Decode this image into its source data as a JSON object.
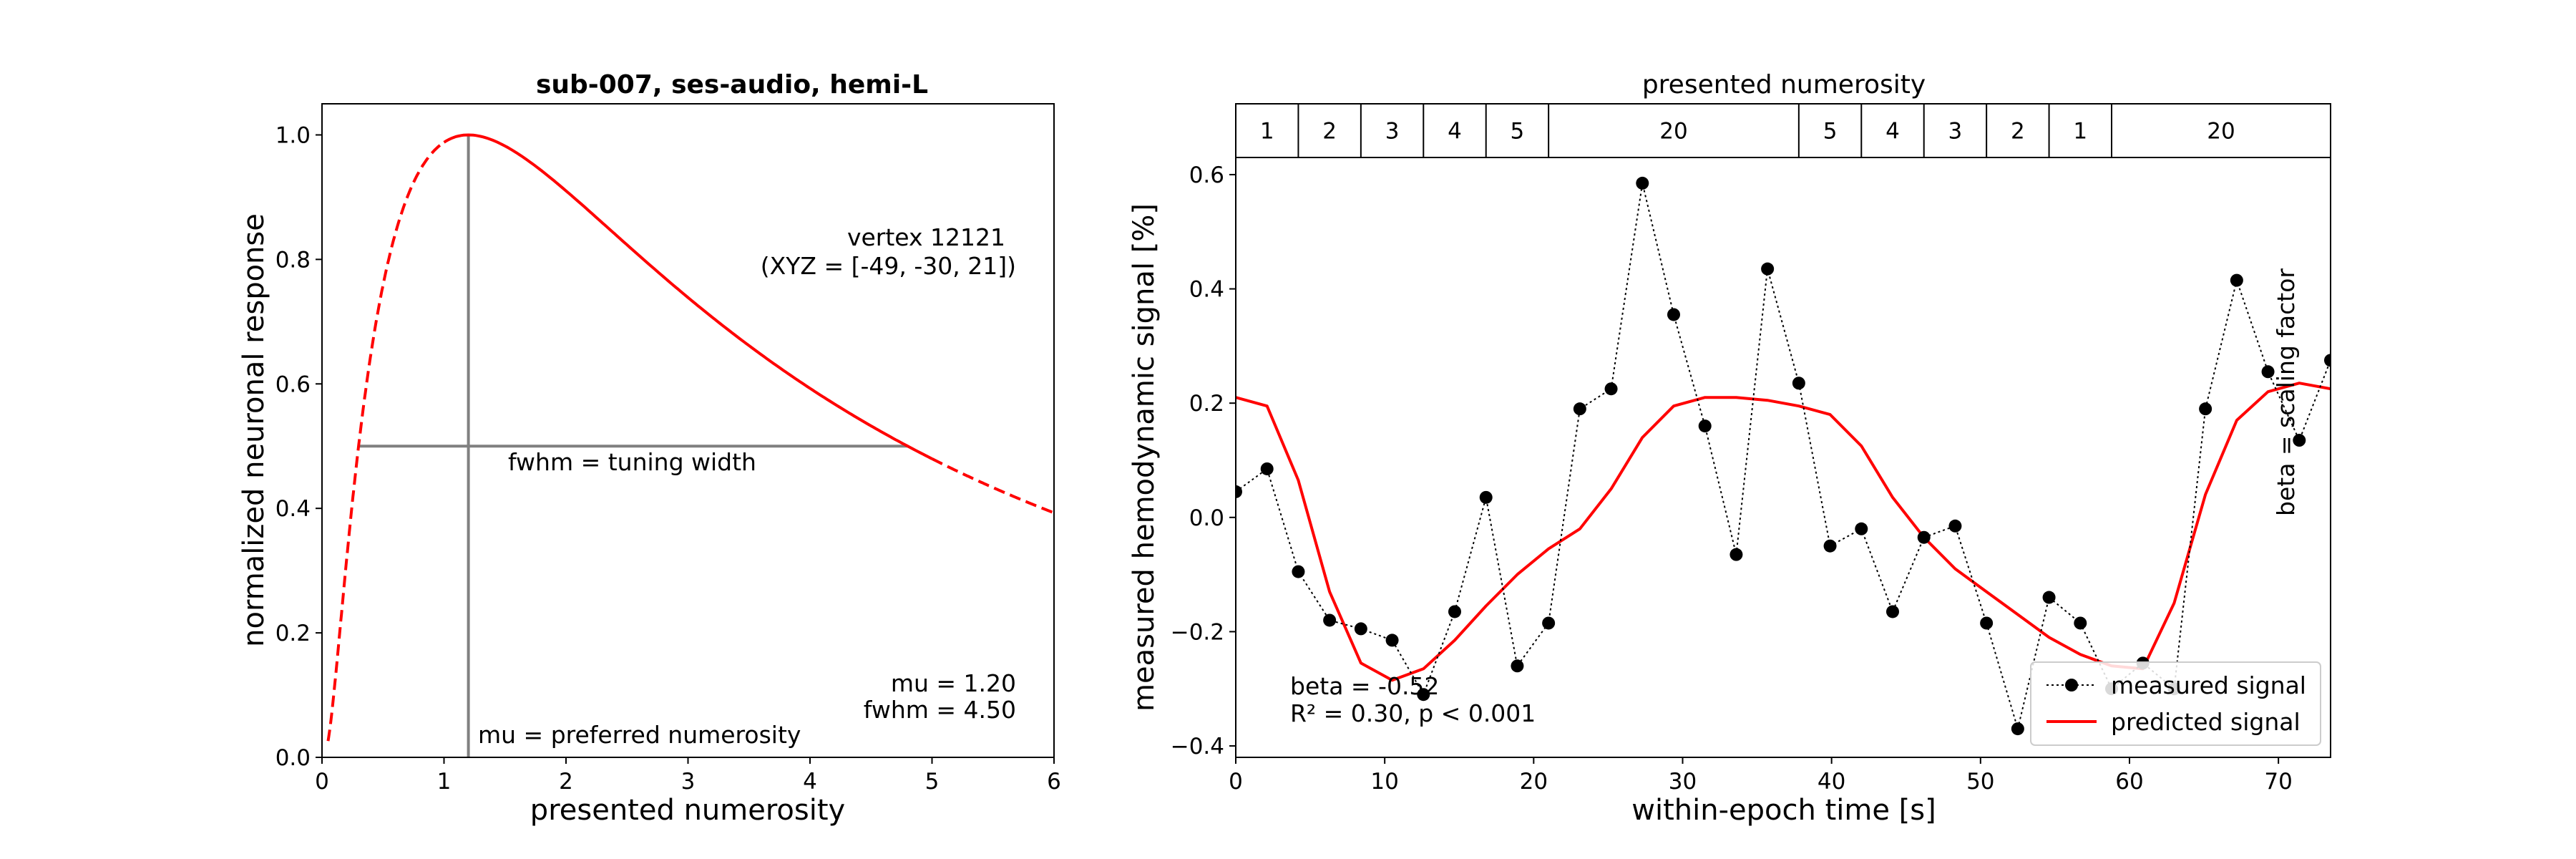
{
  "chart_data": [
    {
      "type": "line",
      "title": "sub-007, ses-audio, hemi-L",
      "xlabel": "presented numerosity",
      "ylabel": "normalized neuronal response",
      "xlim": [
        0,
        6
      ],
      "ylim": [
        0,
        1.05
      ],
      "xticks": [
        0,
        1,
        2,
        3,
        4,
        5,
        6
      ],
      "yticks": [
        0.0,
        0.2,
        0.4,
        0.6,
        0.8,
        1.0
      ],
      "xtick_labels": [
        "0",
        "1",
        "2",
        "3",
        "4",
        "5",
        "6"
      ],
      "ytick_labels": [
        "0.0",
        "0.2",
        "0.4",
        "0.6",
        "0.8",
        "1.0"
      ],
      "tuning": {
        "mu": 1.2,
        "fwhm": 4.5,
        "model": "log-gaussian tuning curve",
        "solid_range": [
          1,
          5
        ],
        "half_max_range": [
          0.3,
          4.8
        ]
      },
      "annotations": {
        "vertex": "vertex 12121",
        "xyz": "(XYZ = [-49, -30, 21])",
        "fwhm_label": "fwhm = tuning width",
        "mu_label": "mu = preferred numerosity",
        "mu_value": "mu = 1.20",
        "fwhm_value": "fwhm = 4.50"
      },
      "colors": {
        "curve": "#ff0000",
        "guides": "#808080"
      }
    },
    {
      "type": "line",
      "title": "presented numerosity",
      "xlabel": "within-epoch time [s]",
      "ylabel": "measured hemodynamic signal [%]",
      "xlim": [
        0,
        73.5
      ],
      "ylim": [
        -0.42,
        0.63
      ],
      "xticks": [
        0,
        10,
        20,
        30,
        40,
        50,
        60,
        70
      ],
      "yticks": [
        -0.4,
        -0.2,
        0.0,
        0.2,
        0.4,
        0.6
      ],
      "xtick_labels": [
        "0",
        "10",
        "20",
        "30",
        "40",
        "50",
        "60",
        "70"
      ],
      "ytick_labels": [
        "−0.4",
        "−0.2",
        "0.0",
        "0.2",
        "0.4",
        "0.6"
      ],
      "numerosity_blocks": [
        {
          "label": "1",
          "start": 0,
          "end": 4.2
        },
        {
          "label": "2",
          "start": 4.2,
          "end": 8.4
        },
        {
          "label": "3",
          "start": 8.4,
          "end": 12.6
        },
        {
          "label": "4",
          "start": 12.6,
          "end": 16.8
        },
        {
          "label": "5",
          "start": 16.8,
          "end": 21.0
        },
        {
          "label": "20",
          "start": 21.0,
          "end": 37.8
        },
        {
          "label": "5",
          "start": 37.8,
          "end": 42.0
        },
        {
          "label": "4",
          "start": 42.0,
          "end": 46.2
        },
        {
          "label": "3",
          "start": 46.2,
          "end": 50.4
        },
        {
          "label": "2",
          "start": 50.4,
          "end": 54.6
        },
        {
          "label": "1",
          "start": 54.6,
          "end": 58.8
        },
        {
          "label": "20",
          "start": 58.8,
          "end": 73.5
        }
      ],
      "series": [
        {
          "name": "measured signal",
          "style": "dotted-black-markers",
          "x": [
            0,
            2.1,
            4.2,
            6.3,
            8.4,
            10.5,
            12.6,
            14.7,
            16.8,
            18.9,
            21.0,
            23.1,
            25.2,
            27.3,
            29.4,
            31.5,
            33.6,
            35.7,
            37.8,
            39.9,
            42.0,
            44.1,
            46.2,
            48.3,
            50.4,
            52.5,
            54.6,
            56.7,
            58.8,
            60.9,
            63.0,
            65.1,
            67.2,
            69.3,
            71.4,
            73.5
          ],
          "y": [
            0.045,
            0.085,
            -0.095,
            -0.18,
            -0.195,
            -0.215,
            -0.31,
            -0.165,
            0.035,
            -0.26,
            -0.185,
            0.19,
            0.225,
            0.585,
            0.355,
            0.16,
            -0.065,
            0.435,
            0.235,
            -0.05,
            -0.02,
            -0.165,
            -0.035,
            -0.015,
            -0.185,
            -0.37,
            -0.14,
            -0.185,
            -0.3,
            -0.255,
            -0.3,
            0.19,
            0.415,
            0.255,
            0.135,
            0.275
          ]
        },
        {
          "name": "predicted signal",
          "style": "solid-red",
          "x": [
            0,
            2.1,
            4.2,
            6.3,
            8.4,
            10.5,
            12.6,
            14.7,
            16.8,
            18.9,
            21.0,
            23.1,
            25.2,
            27.3,
            29.4,
            31.5,
            33.6,
            35.7,
            37.8,
            39.9,
            42.0,
            44.1,
            46.2,
            48.3,
            50.4,
            52.5,
            54.6,
            56.7,
            58.8,
            60.9,
            63.0,
            65.1,
            67.2,
            69.3,
            71.4,
            73.5
          ],
          "y": [
            0.21,
            0.195,
            0.065,
            -0.13,
            -0.255,
            -0.285,
            -0.265,
            -0.215,
            -0.155,
            -0.1,
            -0.055,
            -0.02,
            0.05,
            0.14,
            0.195,
            0.21,
            0.21,
            0.205,
            0.195,
            0.18,
            0.125,
            0.035,
            -0.035,
            -0.09,
            -0.13,
            -0.17,
            -0.21,
            -0.24,
            -0.26,
            -0.265,
            -0.15,
            0.04,
            0.17,
            0.22,
            0.235,
            0.225
          ]
        }
      ],
      "annotations": {
        "beta": "beta = -0.52",
        "stats": "R² = 0.30, p < 0.001",
        "beta_vertical": "beta = scaling factor"
      },
      "legend": {
        "placement": "lower-right",
        "entries": [
          "measured signal",
          "predicted signal"
        ]
      },
      "colors": {
        "measured": "#000000",
        "predicted": "#ff0000"
      }
    }
  ]
}
